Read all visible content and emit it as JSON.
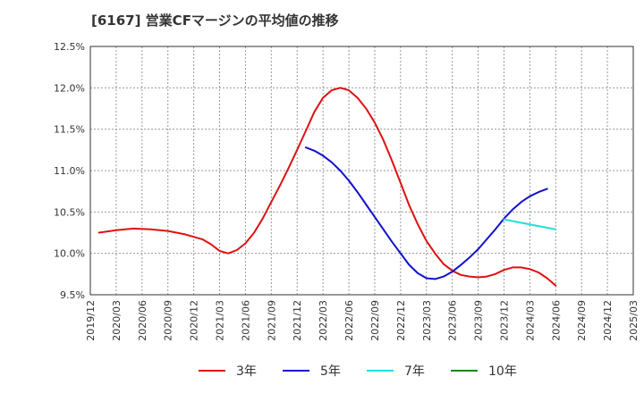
{
  "chart_data": {
    "type": "line",
    "title": "[6167]  営業CFマージンの平均値の推移",
    "xlabel": "",
    "ylabel": "",
    "x_ticks": [
      "2019/12",
      "2020/03",
      "2020/06",
      "2020/09",
      "2020/12",
      "2021/03",
      "2021/06",
      "2021/09",
      "2021/12",
      "2022/03",
      "2022/06",
      "2022/09",
      "2022/12",
      "2023/03",
      "2023/06",
      "2023/09",
      "2023/12",
      "2024/03",
      "2024/06",
      "2024/09",
      "2024/12",
      "2025/03"
    ],
    "y_ticks": [
      "9.5%",
      "10.0%",
      "10.5%",
      "11.0%",
      "11.5%",
      "12.0%",
      "12.5%"
    ],
    "ylim": [
      9.5,
      12.5
    ],
    "grid": true,
    "legend_position": "bottom",
    "series": [
      {
        "name": "3年",
        "color": "#dd1111",
        "points": [
          [
            "2020/01",
            10.25
          ],
          [
            "2020/03",
            10.28
          ],
          [
            "2020/05",
            10.3
          ],
          [
            "2020/07",
            10.29
          ],
          [
            "2020/09",
            10.27
          ],
          [
            "2020/11",
            10.23
          ],
          [
            "2021/01",
            10.17
          ],
          [
            "2021/02",
            10.11
          ],
          [
            "2021/03",
            10.03
          ],
          [
            "2021/04",
            10.0
          ],
          [
            "2021/05",
            10.04
          ],
          [
            "2021/06",
            10.12
          ],
          [
            "2021/07",
            10.25
          ],
          [
            "2021/08",
            10.42
          ],
          [
            "2021/09",
            10.62
          ],
          [
            "2021/10",
            10.82
          ],
          [
            "2021/11",
            11.03
          ],
          [
            "2021/12",
            11.25
          ],
          [
            "2022/01",
            11.48
          ],
          [
            "2022/02",
            11.71
          ],
          [
            "2022/03",
            11.88
          ],
          [
            "2022/04",
            11.97
          ],
          [
            "2022/05",
            12.0
          ],
          [
            "2022/06",
            11.97
          ],
          [
            "2022/07",
            11.88
          ],
          [
            "2022/08",
            11.75
          ],
          [
            "2022/09",
            11.58
          ],
          [
            "2022/10",
            11.37
          ],
          [
            "2022/11",
            11.12
          ],
          [
            "2022/12",
            10.85
          ],
          [
            "2023/01",
            10.58
          ],
          [
            "2023/02",
            10.35
          ],
          [
            "2023/03",
            10.15
          ],
          [
            "2023/04",
            10.0
          ],
          [
            "2023/05",
            9.87
          ],
          [
            "2023/06",
            9.79
          ],
          [
            "2023/07",
            9.74
          ],
          [
            "2023/08",
            9.72
          ],
          [
            "2023/09",
            9.71
          ],
          [
            "2023/10",
            9.72
          ],
          [
            "2023/11",
            9.75
          ],
          [
            "2023/12",
            9.8
          ],
          [
            "2024/01",
            9.83
          ],
          [
            "2024/02",
            9.83
          ],
          [
            "2024/03",
            9.81
          ],
          [
            "2024/04",
            9.77
          ],
          [
            "2024/05",
            9.7
          ],
          [
            "2024/06",
            9.61
          ]
        ]
      },
      {
        "name": "5年",
        "color": "#1111cc",
        "points": [
          [
            "2022/01",
            11.28
          ],
          [
            "2022/02",
            11.24
          ],
          [
            "2022/03",
            11.18
          ],
          [
            "2022/04",
            11.1
          ],
          [
            "2022/05",
            11.0
          ],
          [
            "2022/06",
            10.88
          ],
          [
            "2022/07",
            10.74
          ],
          [
            "2022/08",
            10.59
          ],
          [
            "2022/09",
            10.44
          ],
          [
            "2022/10",
            10.29
          ],
          [
            "2022/11",
            10.14
          ],
          [
            "2022/12",
            10.0
          ],
          [
            "2023/01",
            9.86
          ],
          [
            "2023/02",
            9.76
          ],
          [
            "2023/03",
            9.7
          ],
          [
            "2023/04",
            9.69
          ],
          [
            "2023/05",
            9.72
          ],
          [
            "2023/06",
            9.78
          ],
          [
            "2023/07",
            9.86
          ],
          [
            "2023/08",
            9.95
          ],
          [
            "2023/09",
            10.05
          ],
          [
            "2023/10",
            10.17
          ],
          [
            "2023/11",
            10.29
          ],
          [
            "2023/12",
            10.42
          ],
          [
            "2024/01",
            10.53
          ],
          [
            "2024/02",
            10.62
          ],
          [
            "2024/03",
            10.69
          ],
          [
            "2024/04",
            10.74
          ],
          [
            "2024/05",
            10.78
          ]
        ]
      },
      {
        "name": "7年",
        "color": "#22dddd",
        "points": [
          [
            "2023/12",
            10.41
          ],
          [
            "2024/02",
            10.37
          ],
          [
            "2024/04",
            10.33
          ],
          [
            "2024/06",
            10.29
          ]
        ]
      },
      {
        "name": "10年",
        "color": "#118811",
        "points": []
      }
    ]
  }
}
